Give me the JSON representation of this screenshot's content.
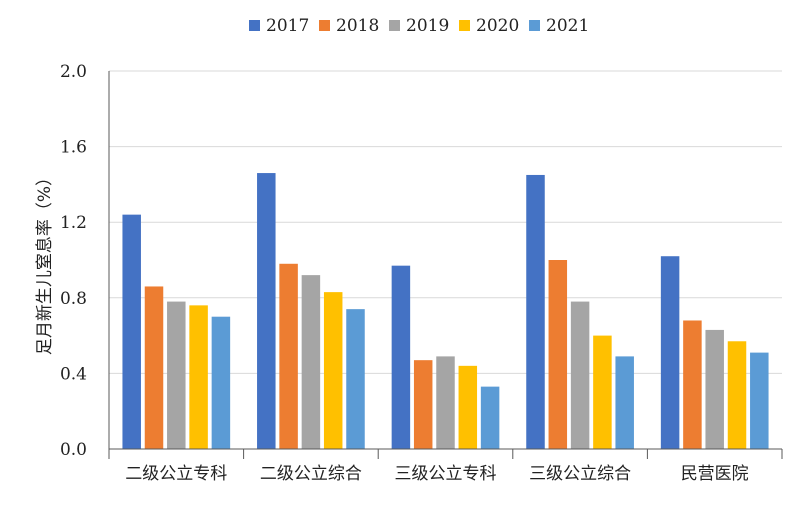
{
  "chart_data": {
    "type": "bar",
    "title": "",
    "xlabel": "",
    "ylabel": "足月新生儿窒息率（%）",
    "ylim": [
      0,
      2.0
    ],
    "yticks": [
      0.0,
      0.4,
      0.8,
      1.2,
      1.6,
      2.0
    ],
    "ytick_labels": [
      "0.0",
      "0.4",
      "0.8",
      "1.2",
      "1.6",
      "2.0"
    ],
    "grid": true,
    "legend_position": "top",
    "categories": [
      "二级公立专科",
      "二级公立综合",
      "三级公立专科",
      "三级公立综合",
      "民营医院"
    ],
    "series": [
      {
        "name": "2017",
        "color": "#4472C4",
        "values": [
          1.24,
          1.46,
          0.97,
          1.45,
          1.02
        ]
      },
      {
        "name": "2018",
        "color": "#ED7D31",
        "values": [
          0.86,
          0.98,
          0.47,
          1.0,
          0.68
        ]
      },
      {
        "name": "2019",
        "color": "#A5A5A5",
        "values": [
          0.78,
          0.92,
          0.49,
          0.78,
          0.63
        ]
      },
      {
        "name": "2020",
        "color": "#FFC000",
        "values": [
          0.76,
          0.83,
          0.44,
          0.6,
          0.57
        ]
      },
      {
        "name": "2021",
        "color": "#5B9BD5",
        "values": [
          0.7,
          0.74,
          0.33,
          0.49,
          0.51
        ]
      }
    ]
  }
}
